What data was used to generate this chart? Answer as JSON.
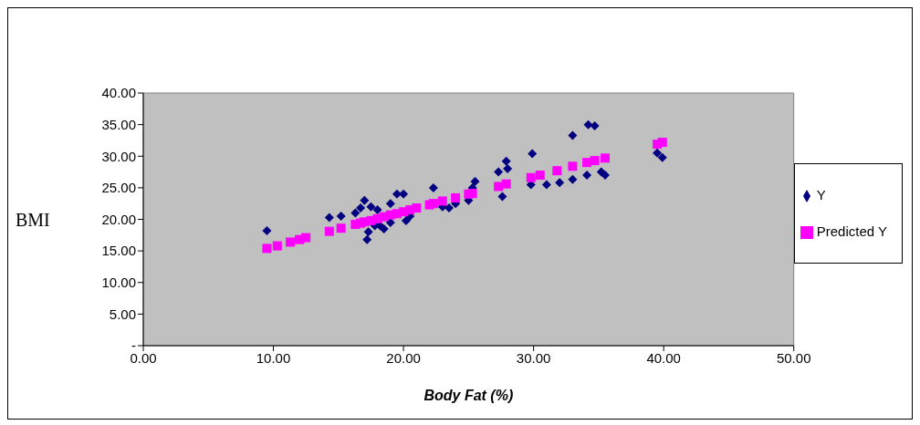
{
  "chart_data": {
    "type": "scatter",
    "xlabel": "Body Fat  (%)",
    "ylabel": "BMI",
    "legend": "right",
    "grid": false,
    "xlim": [
      0,
      50
    ],
    "xticks": [
      {
        "value": 0,
        "label": "0.00"
      },
      {
        "value": 10,
        "label": "10.00"
      },
      {
        "value": 20,
        "label": "20.00"
      },
      {
        "value": 30,
        "label": "30.00"
      },
      {
        "value": 40,
        "label": "40.00"
      },
      {
        "value": 50,
        "label": "50.00"
      }
    ],
    "ylim": [
      0,
      40
    ],
    "yticks": [
      {
        "value": 0,
        "label": "-"
      },
      {
        "value": 5,
        "label": "5.00"
      },
      {
        "value": 10,
        "label": "10.00"
      },
      {
        "value": 15,
        "label": "15.00"
      },
      {
        "value": 20,
        "label": "20.00"
      },
      {
        "value": 25,
        "label": "25.00"
      },
      {
        "value": 30,
        "label": "30.00"
      },
      {
        "value": 35,
        "label": "35.00"
      },
      {
        "value": 40,
        "label": "40.00"
      }
    ],
    "series": [
      {
        "name": "Y",
        "color": "#000080",
        "marker": "diamond",
        "x": [
          9.5,
          14.3,
          15.2,
          16.3,
          16.7,
          17.0,
          17.2,
          17.3,
          17.5,
          17.8,
          18.0,
          18.2,
          18.5,
          19.0,
          19.0,
          19.5,
          20.0,
          20.2,
          20.5,
          21.0,
          22.0,
          22.3,
          23.0,
          23.5,
          24.0,
          25.0,
          25.3,
          25.5,
          27.3,
          27.6,
          27.9,
          28.0,
          29.8,
          29.9,
          31.0,
          32.0,
          33.0,
          33.0,
          34.1,
          34.2,
          34.7,
          35.2,
          35.5,
          39.5,
          39.9
        ],
        "values": [
          18.2,
          20.3,
          20.5,
          21.0,
          21.8,
          23.0,
          16.8,
          18.0,
          22.0,
          19.0,
          21.5,
          19.0,
          18.5,
          22.5,
          19.5,
          24.0,
          24.0,
          19.8,
          20.5,
          null,
          null,
          25.0,
          22.0,
          21.8,
          22.5,
          23.0,
          25.0,
          26.0,
          27.5,
          23.6,
          29.2,
          28.0,
          25.5,
          30.4,
          25.5,
          25.8,
          26.3,
          33.3,
          27.0,
          35.0,
          34.8,
          27.5,
          27.0,
          30.5,
          29.8
        ]
      },
      {
        "name": "Predicted Y",
        "color": "#ff00ff",
        "marker": "square",
        "x": [
          9.5,
          10.3,
          11.3,
          12.0,
          12.5,
          14.3,
          15.2,
          16.3,
          16.7,
          17.0,
          17.5,
          18.0,
          18.5,
          19.0,
          19.5,
          20.0,
          20.5,
          21.0,
          22.0,
          22.3,
          23.0,
          24.0,
          25.0,
          25.3,
          27.3,
          27.9,
          29.8,
          30.5,
          31.8,
          33.0,
          34.1,
          34.7,
          35.2,
          35.5,
          39.5,
          39.9
        ],
        "values": [
          15.4,
          15.8,
          16.4,
          16.8,
          17.1,
          18.1,
          18.6,
          19.2,
          19.4,
          19.6,
          19.8,
          20.1,
          20.4,
          20.7,
          20.9,
          21.2,
          21.5,
          21.8,
          22.3,
          22.5,
          22.9,
          23.4,
          24.0,
          24.1,
          25.2,
          25.6,
          26.6,
          27.0,
          27.7,
          28.4,
          29.0,
          29.3,
          null,
          29.7,
          31.9,
          32.2
        ]
      }
    ]
  }
}
